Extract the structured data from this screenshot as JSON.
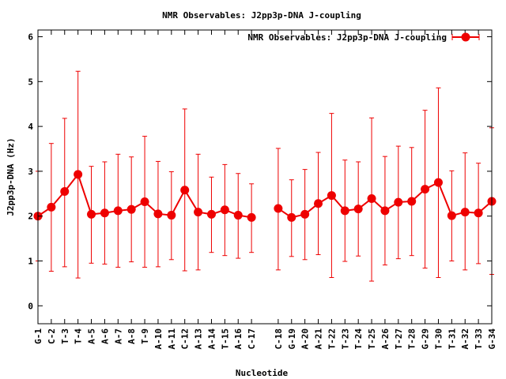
{
  "chart_data": {
    "type": "line",
    "title": "NMR Observables: J2pp3p-DNA J-coupling",
    "xlabel": "Nucleotide",
    "ylabel": "J2pp3p-DNA (Hz)",
    "ylim": [
      -0.4,
      6.15
    ],
    "yticks": [
      "0",
      "1",
      "2",
      "3",
      "4",
      "5",
      "6"
    ],
    "x_range": [
      1,
      35
    ],
    "legend_position": "top-right",
    "grid": false,
    "error_bars": true,
    "marker": "circle",
    "colors": {
      "series": "#ee0000"
    },
    "categories": [
      "G-1",
      "C-2",
      "T-3",
      "T-4",
      "A-5",
      "A-6",
      "A-7",
      "A-8",
      "T-9",
      "A-10",
      "A-11",
      "C-12",
      "A-13",
      "A-14",
      "T-15",
      "A-16",
      "C-17",
      "C-18",
      "G-19",
      "A-20",
      "A-21",
      "T-22",
      "T-23",
      "T-24",
      "T-25",
      "A-26",
      "T-27",
      "T-28",
      "G-29",
      "T-30",
      "T-31",
      "A-32",
      "T-33",
      "G-34"
    ],
    "x": [
      1,
      2,
      3,
      4,
      5,
      6,
      7,
      8,
      9,
      10,
      11,
      12,
      13,
      14,
      15,
      16,
      17,
      19,
      20,
      21,
      22,
      23,
      24,
      25,
      26,
      27,
      28,
      29,
      30,
      31,
      32,
      33,
      34,
      35
    ],
    "series": [
      {
        "name": "NMR Observables: J2pp3p-DNA J-coupling",
        "values": [
          2.0,
          2.2,
          2.55,
          2.93,
          2.04,
          2.07,
          2.12,
          2.15,
          2.32,
          2.05,
          2.02,
          2.58,
          2.09,
          2.04,
          2.14,
          2.02,
          1.97,
          2.17,
          1.97,
          2.04,
          2.28,
          2.46,
          2.12,
          2.16,
          2.39,
          2.12,
          2.31,
          2.33,
          2.6,
          2.75,
          2.01,
          2.09,
          2.07,
          2.33
        ],
        "err_low": [
          1.0,
          0.77,
          0.87,
          0.62,
          0.95,
          0.93,
          0.86,
          0.98,
          0.86,
          0.87,
          1.03,
          0.78,
          0.8,
          1.19,
          1.12,
          1.06,
          1.19,
          0.8,
          1.1,
          1.03,
          1.14,
          0.63,
          0.99,
          1.11,
          0.55,
          0.91,
          1.05,
          1.12,
          0.84,
          0.63,
          1.0,
          0.8,
          0.94,
          0.7
        ],
        "err_high": [
          3.0,
          3.62,
          4.18,
          5.23,
          3.11,
          3.21,
          3.38,
          3.32,
          3.78,
          3.22,
          2.99,
          4.39,
          3.38,
          2.87,
          3.15,
          2.95,
          2.72,
          3.51,
          2.81,
          3.04,
          3.42,
          4.29,
          3.25,
          3.21,
          4.19,
          3.33,
          3.56,
          3.53,
          4.36,
          4.86,
          3.01,
          3.41,
          3.18,
          3.97
        ]
      }
    ]
  }
}
